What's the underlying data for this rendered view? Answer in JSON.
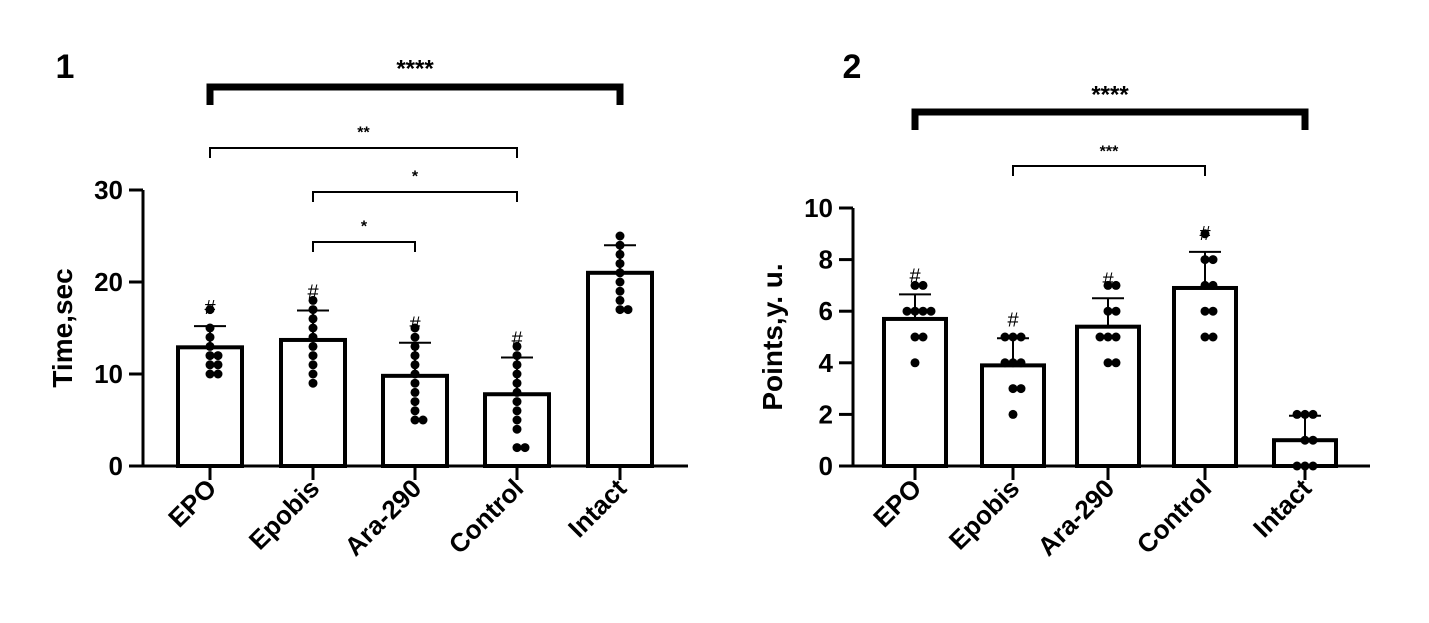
{
  "chart_data": [
    {
      "type": "bar",
      "panel_label": "1",
      "ylabel": "Time,sec",
      "xlabel": "",
      "ylim": [
        0,
        30
      ],
      "yticks": [
        0,
        10,
        20,
        30
      ],
      "categories": [
        "EPO",
        "Epobis",
        "Ara-290",
        "Control",
        "Intact"
      ],
      "values": [
        12.9,
        13.7,
        9.8,
        7.8,
        21.0
      ],
      "errors": [
        2.3,
        3.2,
        3.6,
        4.0,
        3.0
      ],
      "points": [
        [
          17,
          15,
          14,
          13,
          12,
          12,
          11,
          10,
          11,
          10
        ],
        [
          18,
          17,
          16,
          15,
          14,
          13,
          12,
          11,
          10,
          9
        ],
        [
          15,
          14,
          13,
          12,
          11,
          10,
          9,
          8,
          7,
          6,
          5,
          5
        ],
        [
          13,
          12,
          11,
          10,
          9,
          8,
          7,
          6,
          5,
          4,
          2,
          2
        ],
        [
          25,
          24,
          23,
          22,
          21,
          20,
          19,
          18,
          17,
          17
        ]
      ],
      "markers": [
        "#",
        "#",
        "#",
        "#",
        ""
      ],
      "comparisons": [
        {
          "from": 0,
          "to": 4,
          "label": "****",
          "heavy": true
        },
        {
          "from": 0,
          "to": 3,
          "label": "**",
          "heavy": false
        },
        {
          "from": 1,
          "to": 3,
          "label": "*",
          "heavy": false
        },
        {
          "from": 1,
          "to": 2,
          "label": "*",
          "heavy": false
        }
      ]
    },
    {
      "type": "bar",
      "panel_label": "2",
      "ylabel": "Points,y. u.",
      "xlabel": "",
      "ylim": [
        0,
        10
      ],
      "yticks": [
        0,
        2,
        4,
        6,
        8,
        10
      ],
      "categories": [
        "EPO",
        "Epobis",
        "Ara-290",
        "Control",
        "Intact"
      ],
      "values": [
        5.7,
        3.9,
        5.4,
        6.9,
        1.0
      ],
      "errors": [
        0.95,
        1.05,
        1.1,
        1.4,
        0.95
      ],
      "points": [
        [
          7,
          7,
          6,
          6,
          6,
          6,
          5,
          5,
          4
        ],
        [
          5,
          5,
          5,
          4,
          4,
          4,
          3,
          3,
          2
        ],
        [
          7,
          7,
          6,
          6,
          5,
          5,
          5,
          4,
          4
        ],
        [
          9,
          8,
          8,
          7,
          7,
          6,
          6,
          5,
          5
        ],
        [
          2,
          2,
          2,
          1,
          1,
          0,
          0,
          0
        ]
      ],
      "markers": [
        "#",
        "#",
        "#",
        "#",
        ""
      ],
      "comparisons": [
        {
          "from": 0,
          "to": 4,
          "label": "****",
          "heavy": true
        },
        {
          "from": 1,
          "to": 3,
          "label": "***",
          "heavy": false
        }
      ]
    }
  ]
}
